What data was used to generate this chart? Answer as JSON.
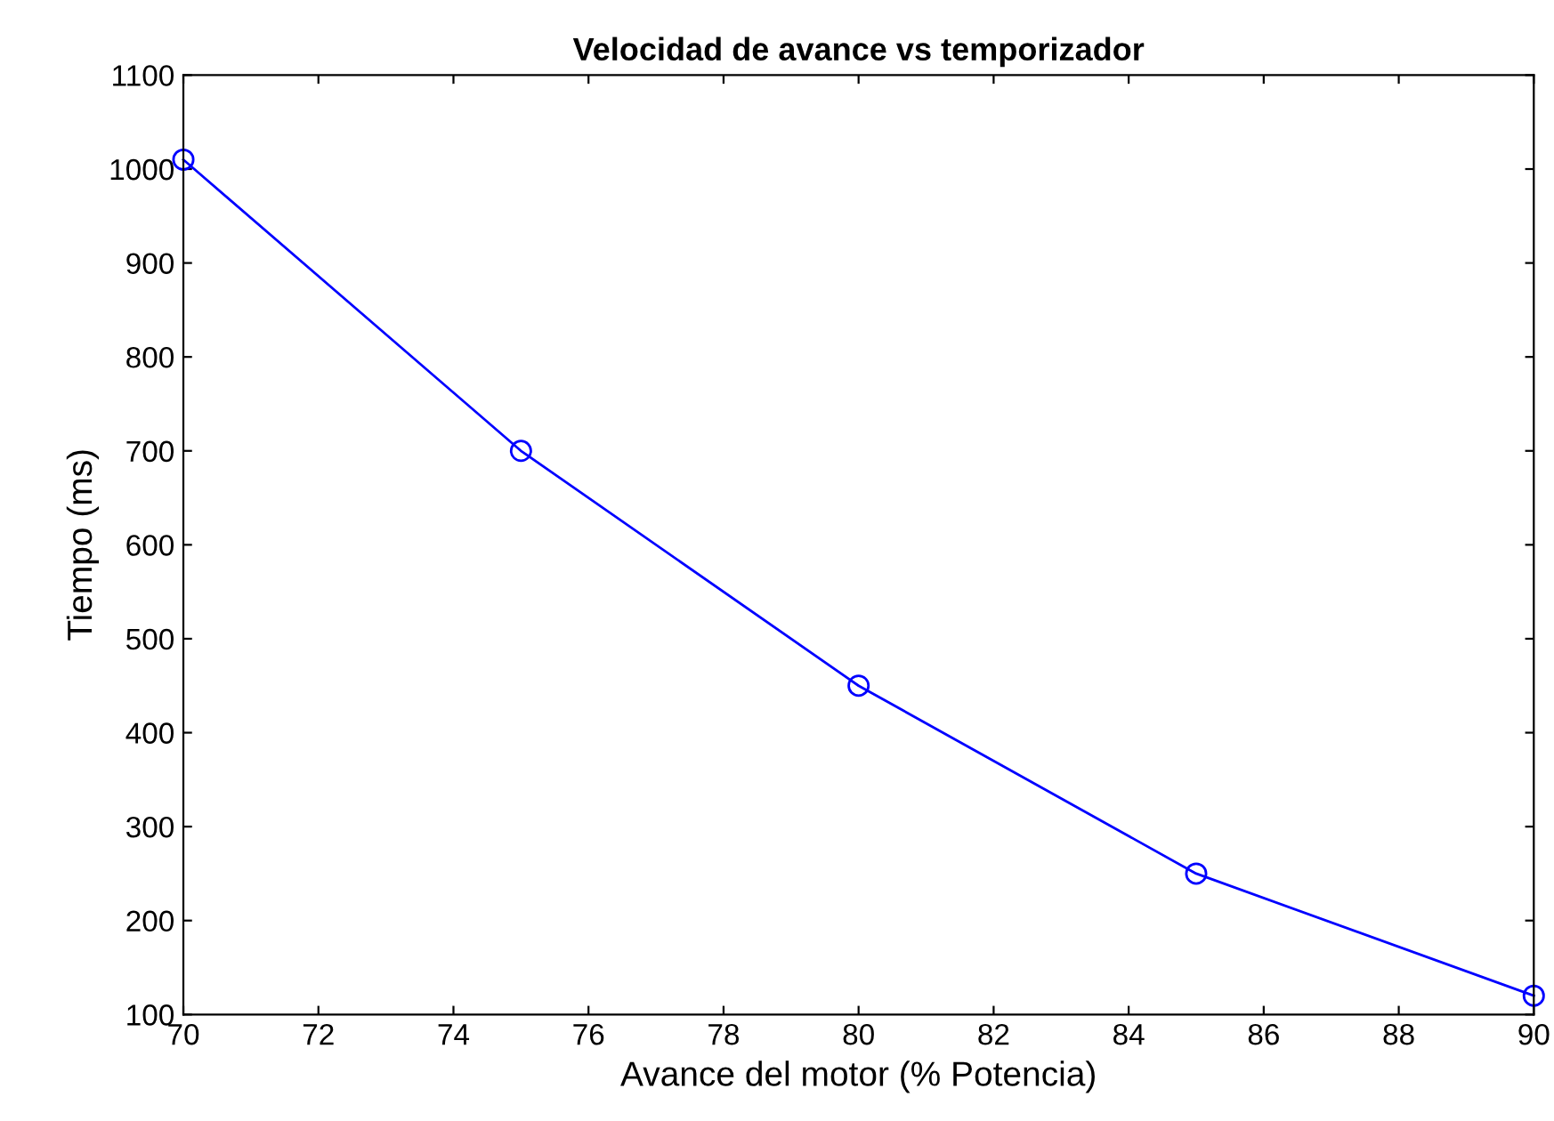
{
  "chart_data": {
    "type": "line",
    "title": "Velocidad de avance vs temporizador",
    "xlabel": "Avance del motor (% Potencia)",
    "ylabel": "Tiempo (ms)",
    "x": [
      70,
      75,
      80,
      85,
      90
    ],
    "series": [
      {
        "color": "#0000ff",
        "values": [
          1010,
          700,
          450,
          250,
          120
        ]
      }
    ],
    "xlim": [
      70,
      90
    ],
    "xticks": [
      70,
      72,
      74,
      76,
      78,
      80,
      82,
      84,
      86,
      88,
      90
    ],
    "ylim": [
      100,
      1100
    ],
    "yticks": [
      100,
      200,
      300,
      400,
      500,
      600,
      700,
      800,
      900,
      1000,
      1100
    ],
    "marker": "circle",
    "line_style": "solid",
    "grid": false,
    "legend": false
  }
}
